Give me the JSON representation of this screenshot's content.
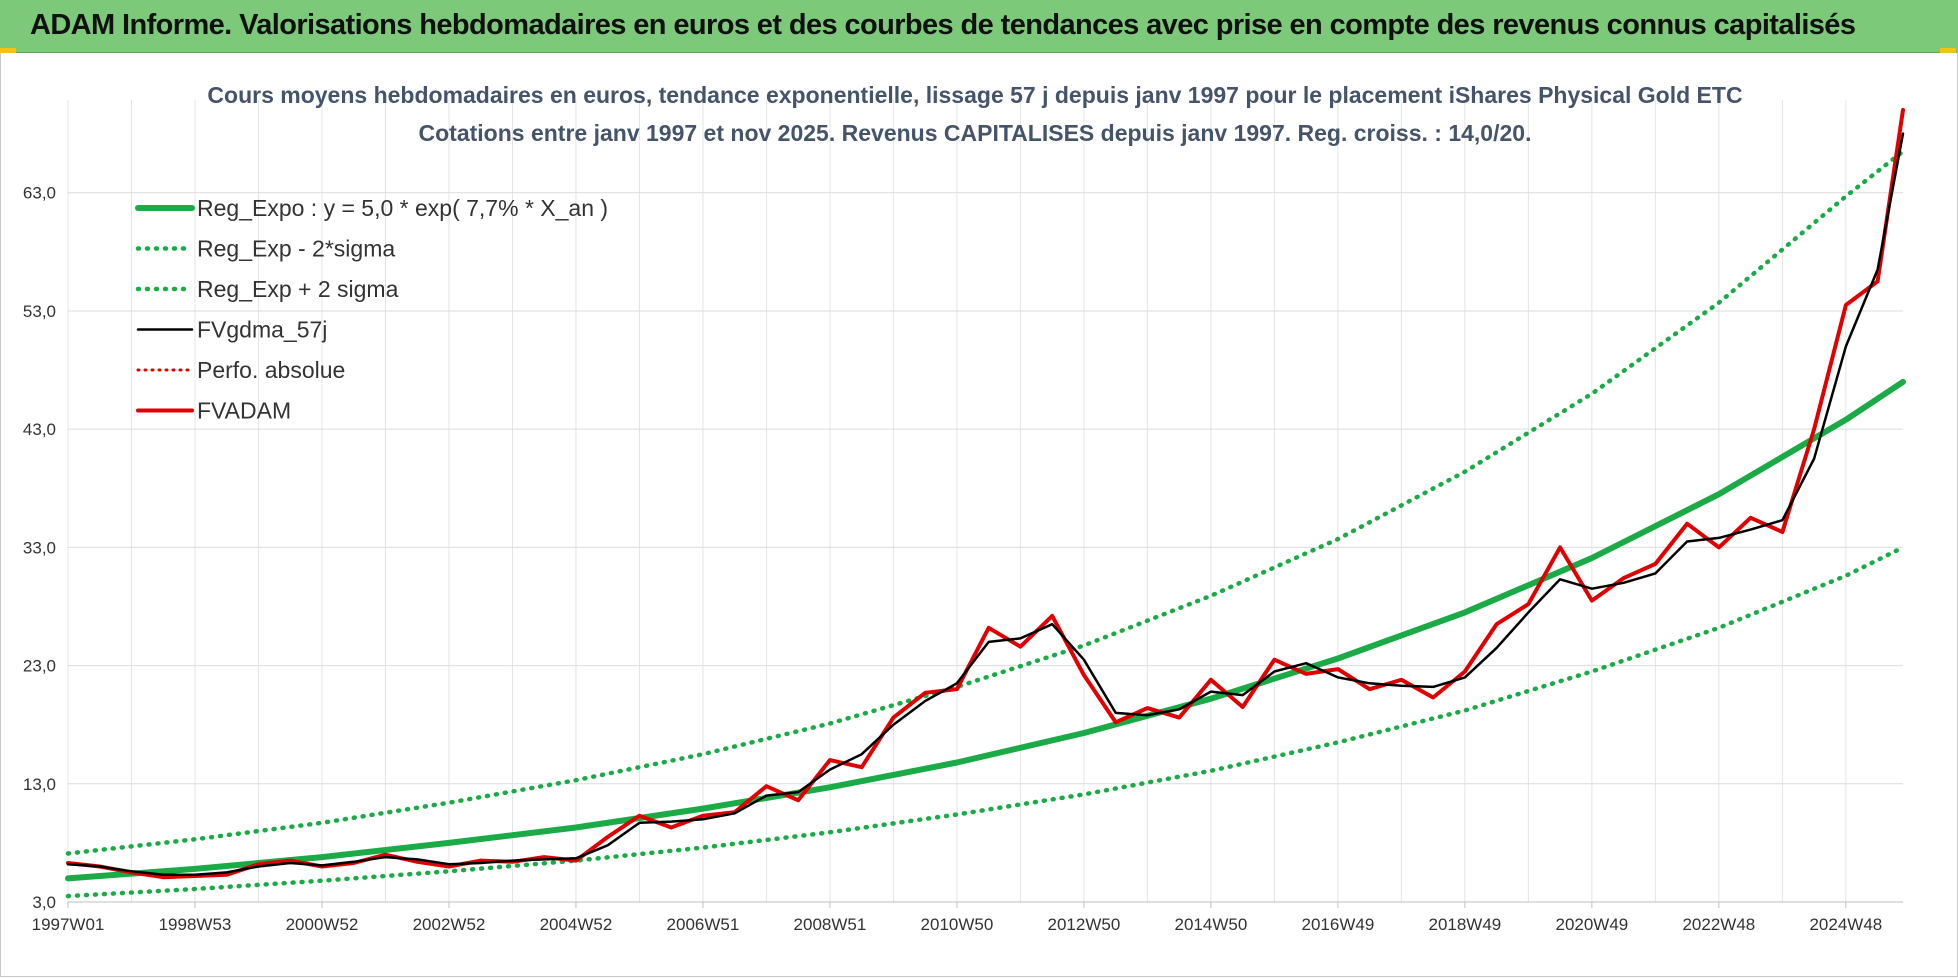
{
  "banner": {
    "title": "ADAM Informe. Valorisations hebdomadaires en euros et des courbes de tendances avec prise en compte des revenus connus capitalisés"
  },
  "chart_data": {
    "type": "line",
    "title": "Cours moyens hebdomadaires en euros, tendance exponentielle, lissage 57 j depuis janv 1997  pour le placement iShares Physical Gold ETC",
    "subtitle": "Cotations entre janv 1997 et nov 2025. Revenus CAPITALISES depuis janv 1997. Reg. croiss. : 14,0/20.",
    "xlabel": "",
    "ylabel": "",
    "x_range": [
      1997.0,
      2025.9
    ],
    "ylim": [
      3.0,
      70.0
    ],
    "yticks": [
      "3,0",
      "13,0",
      "23,0",
      "33,0",
      "43,0",
      "53,0",
      "63,0"
    ],
    "ytick_values": [
      3,
      13,
      23,
      33,
      43,
      53,
      63
    ],
    "xticks": [
      "1997W01",
      "1998W53",
      "2000W52",
      "2002W52",
      "2004W52",
      "2006W51",
      "2008W51",
      "2010W50",
      "2012W50",
      "2014W50",
      "2016W49",
      "2018W49",
      "2020W49",
      "2022W48",
      "2024W48"
    ],
    "xtick_values": [
      1997.0,
      1999.0,
      2001.0,
      2003.0,
      2005.0,
      2007.0,
      2009.0,
      2011.0,
      2013.0,
      2015.0,
      2017.0,
      2019.0,
      2021.0,
      2023.0,
      2025.0
    ],
    "grid": true,
    "legend_position": "top-left",
    "legend": [
      "Reg_Expo : y = 5,0 * exp( 7,7% *  X_an )",
      "Reg_Exp - 2*sigma",
      "Reg_Exp + 2 sigma",
      "FVgdma_57j",
      "Perfo. absolue",
      "FVADAM"
    ],
    "series": [
      {
        "name": "Reg_Expo : y = 5,0 * exp( 7,7% *  X_an )",
        "color": "#1aab47",
        "style": "solid",
        "x": [
          1997,
          1999,
          2001,
          2003,
          2005,
          2007,
          2009,
          2011,
          2013,
          2015,
          2017,
          2019,
          2021,
          2023,
          2025,
          2025.9
        ],
        "y": [
          5.0,
          5.8,
          6.8,
          8.0,
          9.3,
          10.9,
          12.7,
          14.8,
          17.3,
          20.2,
          23.6,
          27.5,
          32.1,
          37.5,
          43.8,
          47.0
        ]
      },
      {
        "name": "Reg_Exp - 2*sigma",
        "color": "#1aab47",
        "style": "dotted",
        "x": [
          1997,
          1999,
          2001,
          2003,
          2005,
          2007,
          2009,
          2011,
          2013,
          2015,
          2017,
          2019,
          2021,
          2023,
          2025,
          2025.9
        ],
        "y": [
          3.5,
          4.1,
          4.8,
          5.6,
          6.5,
          7.6,
          8.9,
          10.4,
          12.1,
          14.1,
          16.5,
          19.2,
          22.5,
          26.2,
          30.6,
          33.0
        ]
      },
      {
        "name": "Reg_Exp + 2 sigma",
        "color": "#1aab47",
        "style": "dotted",
        "x": [
          1997,
          1999,
          2001,
          2003,
          2005,
          2007,
          2009,
          2011,
          2013,
          2015,
          2017,
          2019,
          2021,
          2023,
          2025,
          2025.9
        ],
        "y": [
          7.1,
          8.3,
          9.7,
          11.4,
          13.3,
          15.5,
          18.1,
          21.2,
          24.7,
          28.9,
          33.7,
          39.4,
          46.0,
          53.7,
          62.7,
          66.5
        ]
      },
      {
        "name": "FVgdma_57j",
        "color": "#000000",
        "style": "solid",
        "x": [
          1997.0,
          1997.5,
          1998.0,
          1998.5,
          1999.0,
          1999.5,
          2000.0,
          2000.5,
          2001.0,
          2001.5,
          2002.0,
          2002.5,
          2003.0,
          2003.5,
          2004.0,
          2004.5,
          2005.0,
          2005.5,
          2006.0,
          2006.5,
          2007.0,
          2007.5,
          2008.0,
          2008.5,
          2009.0,
          2009.5,
          2010.0,
          2010.5,
          2011.0,
          2011.5,
          2012.0,
          2012.5,
          2013.0,
          2013.5,
          2014.0,
          2014.5,
          2015.0,
          2015.5,
          2016.0,
          2016.5,
          2017.0,
          2017.5,
          2018.0,
          2018.5,
          2019.0,
          2019.5,
          2020.0,
          2020.5,
          2021.0,
          2021.5,
          2022.0,
          2022.5,
          2023.0,
          2023.5,
          2024.0,
          2024.5,
          2025.0,
          2025.5,
          2025.9
        ],
        "y": [
          6.2,
          6.0,
          5.6,
          5.3,
          5.3,
          5.5,
          6.0,
          6.3,
          6.1,
          6.4,
          6.8,
          6.6,
          6.2,
          6.3,
          6.5,
          6.6,
          6.7,
          7.8,
          9.7,
          9.8,
          10.0,
          10.5,
          12.0,
          12.3,
          14.2,
          15.5,
          18.0,
          20.0,
          21.5,
          25.0,
          25.3,
          26.5,
          23.5,
          19.0,
          18.8,
          19.3,
          20.8,
          20.5,
          22.5,
          23.2,
          22.0,
          21.5,
          21.3,
          21.2,
          22.0,
          24.5,
          27.5,
          30.3,
          29.5,
          30.0,
          30.8,
          33.5,
          33.8,
          34.5,
          35.3,
          40.5,
          50.0,
          56.5,
          68.0
        ]
      },
      {
        "name": "Perfo. absolue",
        "color": "#e00000",
        "style": "dotted",
        "x": [],
        "y": []
      },
      {
        "name": "FVADAM",
        "color": "#e00000",
        "style": "solid",
        "x": [
          1997.0,
          1997.5,
          1998.0,
          1998.5,
          1999.0,
          1999.5,
          2000.0,
          2000.5,
          2001.0,
          2001.5,
          2002.0,
          2002.5,
          2003.0,
          2003.5,
          2004.0,
          2004.5,
          2005.0,
          2005.5,
          2006.0,
          2006.5,
          2007.0,
          2007.5,
          2008.0,
          2008.5,
          2009.0,
          2009.5,
          2010.0,
          2010.5,
          2011.0,
          2011.5,
          2012.0,
          2012.5,
          2013.0,
          2013.5,
          2014.0,
          2014.5,
          2015.0,
          2015.5,
          2016.0,
          2016.5,
          2017.0,
          2017.5,
          2018.0,
          2018.5,
          2019.0,
          2019.5,
          2020.0,
          2020.5,
          2021.0,
          2021.5,
          2022.0,
          2022.5,
          2023.0,
          2023.5,
          2024.0,
          2024.5,
          2025.0,
          2025.5,
          2025.9
        ],
        "y": [
          6.3,
          6.0,
          5.5,
          5.1,
          5.2,
          5.3,
          6.2,
          6.5,
          6.0,
          6.3,
          7.0,
          6.4,
          6.0,
          6.5,
          6.4,
          6.8,
          6.5,
          8.5,
          10.3,
          9.3,
          10.3,
          10.6,
          12.8,
          11.6,
          15.0,
          14.4,
          18.6,
          20.7,
          21.0,
          26.2,
          24.6,
          27.2,
          22.2,
          18.2,
          19.4,
          18.6,
          21.8,
          19.5,
          23.5,
          22.3,
          22.7,
          21.0,
          21.8,
          20.3,
          22.5,
          26.5,
          28.2,
          33.0,
          28.5,
          30.4,
          31.6,
          35.0,
          33.0,
          35.5,
          34.3,
          43.0,
          53.5,
          55.5,
          70.0
        ]
      }
    ]
  }
}
